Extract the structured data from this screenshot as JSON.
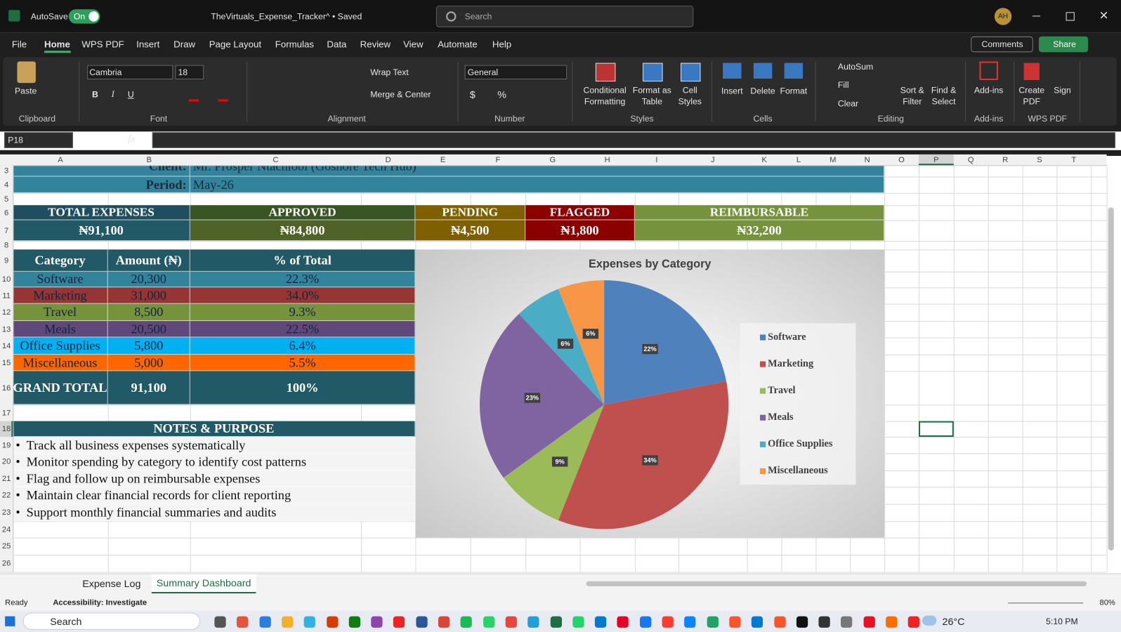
{
  "titlebar": {
    "autosave": "AutoSave",
    "toggle": "On",
    "filename": "TheVirtuals_Expense_Tracker^ • Saved",
    "search": "Search",
    "avatar": "AH"
  },
  "menu": {
    "tabs": [
      "File",
      "Home",
      "WPS PDF",
      "Insert",
      "Draw",
      "Page Layout",
      "Formulas",
      "Data",
      "Review",
      "View",
      "Automate",
      "Help"
    ],
    "comments": "Comments",
    "share": "Share"
  },
  "ribbon": {
    "paste": "Paste",
    "font": "Cambria",
    "font_size": "18",
    "bold": "B",
    "italic": "I",
    "underline": "U",
    "wrap_text": "Wrap Text",
    "merge_center": "Merge & Center",
    "number_format": "General",
    "currency": "$",
    "percent": "%",
    "conditional_formatting": "Conditional Formatting",
    "format_as_table": "Format as Table",
    "cell_styles": "Cell Styles",
    "insert": "Insert",
    "delete": "Delete",
    "format": "Format",
    "autosum": "AutoSum",
    "fill": "Fill",
    "clear": "Clear",
    "sort_filter": "Sort & Filter",
    "find_select": "Find & Select",
    "add_ins": "Add-ins",
    "create_pdf": "Create PDF",
    "sign": "Sign",
    "groups": [
      "Clipboard",
      "Font",
      "Alignment",
      "Number",
      "Styles",
      "Cells",
      "Editing",
      "Add-ins",
      "WPS PDF"
    ]
  },
  "formula_bar": {
    "name_box": "P18",
    "fx": "fx"
  },
  "sheet": {
    "columns": [
      "A",
      "B",
      "C",
      "D",
      "E",
      "F",
      "G",
      "H",
      "I",
      "J",
      "K",
      "L",
      "M",
      "N",
      "O",
      "P",
      "Q",
      "R",
      "S",
      "T"
    ],
    "rows": [
      3,
      4,
      5,
      6,
      7,
      8,
      9,
      10,
      11,
      12,
      13,
      14,
      15,
      16,
      17,
      18,
      19,
      20,
      21,
      22,
      23,
      24,
      25,
      26
    ],
    "client_label": "Client:",
    "client": "Mr. Prosper Ntachiobi (Goshore Tech Hub)",
    "period_label": "Period:",
    "period": "May-26",
    "kpis": [
      {
        "label": "TOTAL EXPENSES",
        "value": "₦91,100"
      },
      {
        "label": "APPROVED",
        "value": "₦84,800"
      },
      {
        "label": "PENDING",
        "value": "₦4,500"
      },
      {
        "label": "FLAGGED",
        "value": "₦1,800"
      },
      {
        "label": "REIMBURSABLE",
        "value": "₦32,200"
      }
    ],
    "table": {
      "header": [
        "Category",
        "Amount (₦)",
        "% of Total"
      ],
      "rows": [
        [
          "Software",
          "20,300",
          "22.3%"
        ],
        [
          "Marketing",
          "31,000",
          "34.0%"
        ],
        [
          "Travel",
          "8,500",
          "9.3%"
        ],
        [
          "Meals",
          "20,500",
          "22.5%"
        ],
        [
          "Office Supplies",
          "5,800",
          "6.4%"
        ],
        [
          "Miscellaneous",
          "5,000",
          "5.5%"
        ]
      ],
      "total": [
        "GRAND TOTAL",
        "91,100",
        "100%"
      ]
    },
    "notes_title": "NOTES & PURPOSE",
    "bullet": "•",
    "notes": [
      "Track all business expenses systematically",
      "Monitor spending by category to identify cost patterns",
      "Flag and follow up on reimbursable expenses",
      "Maintain clear financial records for client reporting",
      "Support monthly financial summaries and audits"
    ]
  },
  "chart_data": {
    "type": "pie",
    "title": "Expenses by Category",
    "categories": [
      "Software",
      "Marketing",
      "Travel",
      "Meals",
      "Office Supplies",
      "Miscellaneous"
    ],
    "values": [
      22,
      34,
      9,
      23,
      6,
      6
    ],
    "value_labels": [
      "22%",
      "34%",
      "9%",
      "23%",
      "6%",
      "6%"
    ],
    "colors": [
      "#4f81bd",
      "#c0504d",
      "#9bbb59",
      "#8064a2",
      "#4bacc6",
      "#f79646"
    ],
    "legend": "right"
  },
  "sheet_tabs": [
    "Expense Log",
    "Summary Dashboard"
  ],
  "status": {
    "ready": "Ready",
    "accessibility": "Accessibility: Investigate",
    "zoom": "80%"
  },
  "taskbar": {
    "search": "Search",
    "weather": "26°C",
    "time": "5:10 PM"
  }
}
